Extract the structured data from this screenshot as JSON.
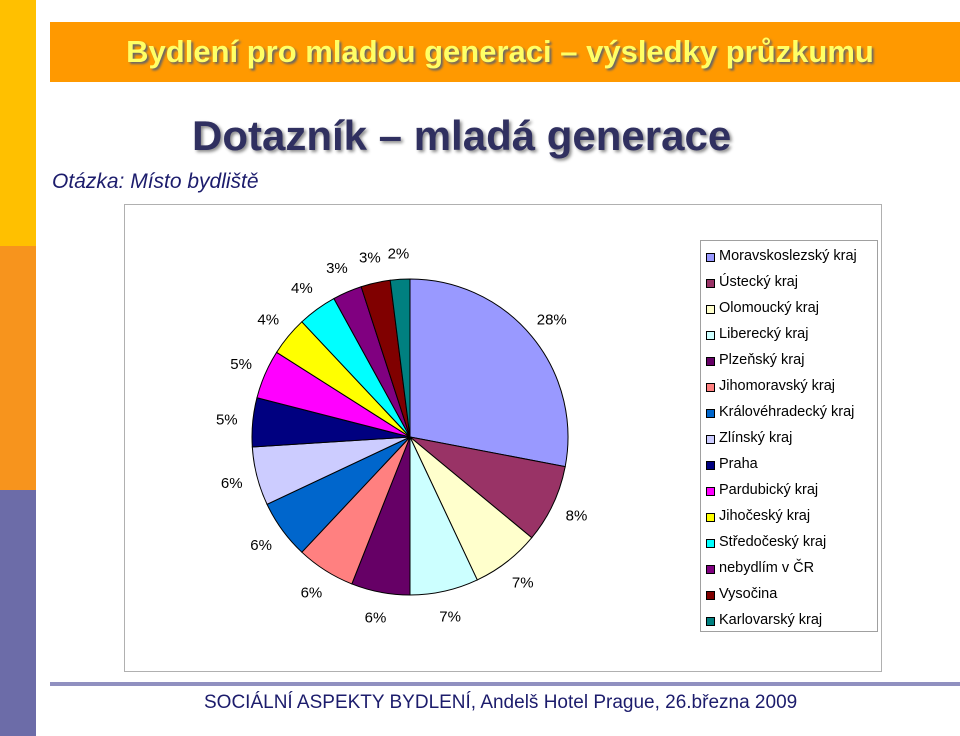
{
  "header": {
    "banner_title": "Bydlení pro mladou generaci – výsledky průzkumu",
    "subtitle": "Dotazník – mladá generace",
    "question": "Otázka: Místo bydliště"
  },
  "footer": {
    "text": "SOCIÁLNÍ ASPEKTY BYDLENÍ, Andelš Hotel Prague, 26.března 2009"
  },
  "colors": {
    "banner": "#FF9900",
    "banner_text": "#FFFF66",
    "title_text": "#303060",
    "footer_text": "#1C1C6C"
  },
  "chart_data": {
    "type": "pie",
    "legend_position": "right",
    "slices": [
      {
        "name": "Moravskoslezský kraj",
        "value": 28,
        "label": "28%",
        "color": "#9999FF"
      },
      {
        "name": "Ústecký kraj",
        "value": 8,
        "label": "8%",
        "color": "#993366"
      },
      {
        "name": "Olomoucký kraj",
        "value": 7,
        "label": "7%",
        "color": "#FFFFCC"
      },
      {
        "name": "Liberecký kraj",
        "value": 7,
        "label": "7%",
        "color": "#CCFFFF"
      },
      {
        "name": "Plzeňský kraj",
        "value": 6,
        "label": "6%",
        "color": "#660066"
      },
      {
        "name": "Jihomoravský kraj",
        "value": 6,
        "label": "6%",
        "color": "#FF8080"
      },
      {
        "name": "Královéhradecký kraj",
        "value": 6,
        "label": "6%",
        "color": "#0066CC"
      },
      {
        "name": "Zlínský kraj",
        "value": 6,
        "label": "6%",
        "color": "#CCCCFF"
      },
      {
        "name": "Praha",
        "value": 5,
        "label": "5%",
        "color": "#000080"
      },
      {
        "name": "Pardubický kraj",
        "value": 5,
        "label": "5%",
        "color": "#FF00FF"
      },
      {
        "name": "Jihočeský kraj",
        "value": 4,
        "label": "4%",
        "color": "#FFFF00"
      },
      {
        "name": "Středočeský kraj",
        "value": 4,
        "label": "4%",
        "color": "#00FFFF"
      },
      {
        "name": "nebydlím v ČR",
        "value": 3,
        "label": "3%",
        "color": "#800080"
      },
      {
        "name": "Vysočina",
        "value": 3,
        "label": "3%",
        "color": "#800000"
      },
      {
        "name": "Karlovarský kraj",
        "value": 2,
        "label": "2%",
        "color": "#008080"
      }
    ]
  }
}
